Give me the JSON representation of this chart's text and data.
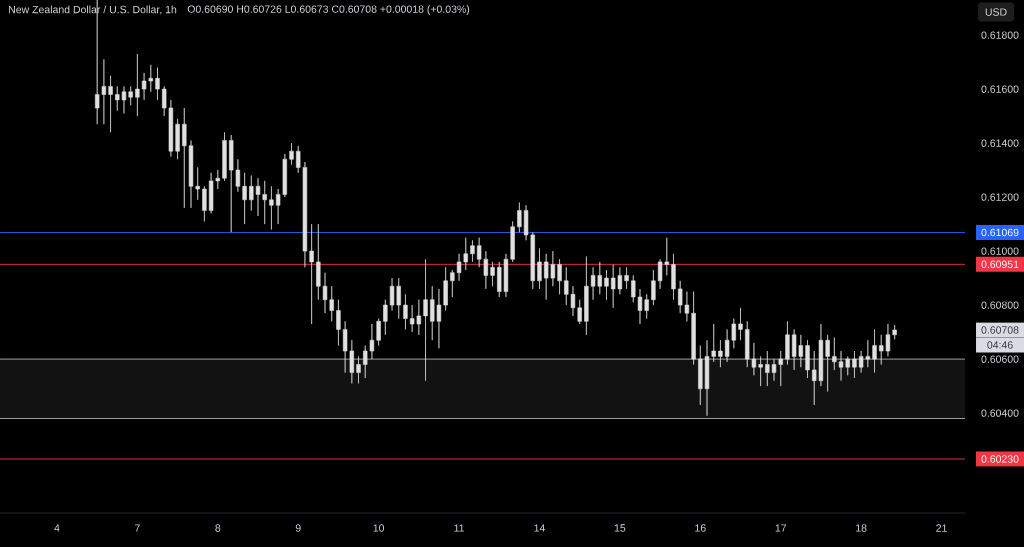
{
  "chart_data": {
    "type": "candlestick",
    "title": "New Zealand Dollar / U.S. Dollar, 1h",
    "subtitle": "O0.60690 H0.60726 L0.60673 C0.60708 +0.00018 (+0.03%)",
    "ylabel": "USD",
    "color": "#e0e0e0",
    "categories": [
      null,
      null,
      null,
      null,
      null,
      null,
      null,
      null,
      "4",
      null,
      null,
      null,
      null,
      null,
      null,
      null,
      null,
      null,
      null,
      null,
      "7",
      null,
      null,
      null,
      null,
      null,
      null,
      null,
      null,
      null,
      null,
      null,
      "8",
      null,
      null,
      null,
      null,
      null,
      null,
      null,
      null,
      null,
      null,
      null,
      "9",
      null,
      null,
      null,
      null,
      null,
      null,
      null,
      null,
      null,
      null,
      null,
      "10",
      null,
      null,
      null,
      null,
      null,
      null,
      null,
      null,
      null,
      null,
      null,
      "11",
      null,
      null,
      null,
      null,
      null,
      null,
      null,
      null,
      null,
      null,
      null,
      "14",
      null,
      null,
      null,
      null,
      null,
      null,
      null,
      null,
      null,
      null,
      null,
      "15",
      null,
      null,
      null,
      null,
      null,
      null,
      null,
      null,
      null,
      null,
      null,
      "16",
      null,
      null,
      null,
      null,
      null,
      null,
      null,
      null,
      null,
      null,
      null,
      "17",
      null,
      null,
      null,
      null,
      null,
      null,
      null,
      null,
      null,
      null,
      null,
      "18",
      null,
      null,
      null,
      null,
      null,
      null,
      null,
      null,
      null,
      null,
      null,
      "21",
      null,
      null,
      null
    ],
    "ohlc": [
      null,
      null,
      null,
      null,
      null,
      null,
      null,
      null,
      null,
      null,
      null,
      null,
      null,
      null,
      [
        0.6153,
        0.6193,
        0.6147,
        0.6158
      ],
      [
        0.6158,
        0.6171,
        0.6147,
        0.6161
      ],
      [
        0.6161,
        0.6165,
        0.6144,
        0.6158
      ],
      [
        0.6158,
        0.6161,
        0.6152,
        0.6156
      ],
      [
        0.6156,
        0.6161,
        0.6151,
        0.6159
      ],
      [
        0.6159,
        0.6161,
        0.6154,
        0.6157
      ],
      [
        0.6157,
        0.6173,
        0.615,
        0.616
      ],
      [
        0.616,
        0.6166,
        0.6156,
        0.6163
      ],
      [
        0.6163,
        0.6169,
        0.6159,
        0.6164
      ],
      [
        0.6164,
        0.6168,
        0.6156,
        0.616
      ],
      [
        0.616,
        0.6161,
        0.615,
        0.6153
      ],
      [
        0.6153,
        0.6156,
        0.6135,
        0.6137
      ],
      [
        0.6137,
        0.6149,
        0.6134,
        0.6147
      ],
      [
        0.6147,
        0.6153,
        0.6116,
        0.6139
      ],
      [
        0.6139,
        0.6141,
        0.6116,
        0.6124
      ],
      [
        0.6124,
        0.6131,
        0.6119,
        0.6123
      ],
      [
        0.6123,
        0.6124,
        0.6111,
        0.6115
      ],
      [
        0.6115,
        0.6129,
        0.6114,
        0.6126
      ],
      [
        0.6126,
        0.613,
        0.6123,
        0.6127
      ],
      [
        0.6127,
        0.6144,
        0.6126,
        0.6141
      ],
      [
        0.6141,
        0.6143,
        0.6107,
        0.613
      ],
      [
        0.613,
        0.6134,
        0.6122,
        0.6124
      ],
      [
        0.6124,
        0.6129,
        0.611,
        0.6119
      ],
      [
        0.6119,
        0.6128,
        0.6115,
        0.6124
      ],
      [
        0.6124,
        0.6127,
        0.6113,
        0.6121
      ],
      [
        0.6121,
        0.6126,
        0.611,
        0.6119
      ],
      [
        0.6119,
        0.6124,
        0.6108,
        0.6117
      ],
      [
        0.6117,
        0.6123,
        0.611,
        0.6121
      ],
      [
        0.6121,
        0.6136,
        0.612,
        0.6134
      ],
      [
        0.6134,
        0.614,
        0.6132,
        0.6137
      ],
      [
        0.6137,
        0.6139,
        0.6129,
        0.6131
      ],
      [
        0.6131,
        0.6133,
        0.6094,
        0.61
      ],
      [
        0.61,
        0.611,
        0.6073,
        0.6096
      ],
      [
        0.6096,
        0.611,
        0.6082,
        0.6087
      ],
      [
        0.6087,
        0.6092,
        0.6077,
        0.6082
      ],
      [
        0.6082,
        0.6087,
        0.6074,
        0.6078
      ],
      [
        0.6078,
        0.6082,
        0.6065,
        0.6071
      ],
      [
        0.6071,
        0.6074,
        0.6055,
        0.6063
      ],
      [
        0.6063,
        0.6067,
        0.6051,
        0.6055
      ],
      [
        0.6055,
        0.6061,
        0.6051,
        0.6058
      ],
      [
        0.6058,
        0.6065,
        0.6053,
        0.6063
      ],
      [
        0.6063,
        0.6073,
        0.606,
        0.6067
      ],
      [
        0.6067,
        0.6075,
        0.6065,
        0.6074
      ],
      [
        0.6074,
        0.6082,
        0.6069,
        0.608
      ],
      [
        0.608,
        0.609,
        0.6078,
        0.6087
      ],
      [
        0.6087,
        0.609,
        0.6075,
        0.608
      ],
      [
        0.608,
        0.6084,
        0.6071,
        0.6075
      ],
      [
        0.6075,
        0.608,
        0.607,
        0.6073
      ],
      [
        0.6073,
        0.6082,
        0.6069,
        0.6076
      ],
      [
        0.6076,
        0.6097,
        0.6052,
        0.6082
      ],
      [
        0.6082,
        0.6087,
        0.6067,
        0.6074
      ],
      [
        0.6074,
        0.6086,
        0.6064,
        0.608
      ],
      [
        0.608,
        0.6094,
        0.6078,
        0.6089
      ],
      [
        0.6089,
        0.6093,
        0.6083,
        0.6092
      ],
      [
        0.6092,
        0.6099,
        0.6089,
        0.6096
      ],
      [
        0.6096,
        0.6105,
        0.6093,
        0.6099
      ],
      [
        0.6099,
        0.6104,
        0.6096,
        0.6102
      ],
      [
        0.6102,
        0.6105,
        0.6094,
        0.6097
      ],
      [
        0.6097,
        0.61,
        0.6086,
        0.6091
      ],
      [
        0.6091,
        0.6096,
        0.6087,
        0.6094
      ],
      [
        0.6094,
        0.6096,
        0.6083,
        0.6085
      ],
      [
        0.6085,
        0.6099,
        0.6083,
        0.6097
      ],
      [
        0.6097,
        0.6111,
        0.6096,
        0.6109
      ],
      [
        0.6109,
        0.6118,
        0.6107,
        0.6115
      ],
      [
        0.6115,
        0.6117,
        0.6104,
        0.6106
      ],
      [
        0.6106,
        0.6107,
        0.6086,
        0.6089
      ],
      [
        0.6089,
        0.6101,
        0.6086,
        0.6096
      ],
      [
        0.6096,
        0.6099,
        0.6082,
        0.609
      ],
      [
        0.609,
        0.61,
        0.6087,
        0.6095
      ],
      [
        0.6095,
        0.6097,
        0.6084,
        0.6089
      ],
      [
        0.6089,
        0.6094,
        0.608,
        0.6084
      ],
      [
        0.6084,
        0.6087,
        0.6076,
        0.6079
      ],
      [
        0.6079,
        0.6082,
        0.6073,
        0.6074
      ],
      [
        0.6074,
        0.6098,
        0.6069,
        0.6087
      ],
      [
        0.6087,
        0.6094,
        0.6082,
        0.6091
      ],
      [
        0.6091,
        0.6096,
        0.6084,
        0.6087
      ],
      [
        0.6087,
        0.6093,
        0.6082,
        0.609
      ],
      [
        0.609,
        0.6095,
        0.6079,
        0.6086
      ],
      [
        0.6086,
        0.6094,
        0.6084,
        0.6091
      ],
      [
        0.6091,
        0.6094,
        0.6086,
        0.6089
      ],
      [
        0.6089,
        0.6091,
        0.6081,
        0.6083
      ],
      [
        0.6083,
        0.6086,
        0.6073,
        0.6078
      ],
      [
        0.6078,
        0.6084,
        0.6075,
        0.6082
      ],
      [
        0.6082,
        0.6093,
        0.608,
        0.6089
      ],
      [
        0.6089,
        0.6097,
        0.6086,
        0.6096
      ],
      [
        0.6096,
        0.6105,
        0.6091,
        0.6095
      ],
      [
        0.6095,
        0.6099,
        0.6082,
        0.6086
      ],
      [
        0.6086,
        0.6089,
        0.6077,
        0.608
      ],
      [
        0.608,
        0.6085,
        0.6074,
        0.6077
      ],
      [
        0.6077,
        0.6085,
        0.6058,
        0.606
      ],
      [
        0.606,
        0.6065,
        0.6043,
        0.6049
      ],
      [
        0.6049,
        0.6067,
        0.6039,
        0.6061
      ],
      [
        0.6061,
        0.6073,
        0.6059,
        0.6063
      ],
      [
        0.6063,
        0.6067,
        0.6057,
        0.6061
      ],
      [
        0.6061,
        0.6071,
        0.6059,
        0.6067
      ],
      [
        0.6067,
        0.6075,
        0.6064,
        0.6073
      ],
      [
        0.6073,
        0.6079,
        0.6067,
        0.6071
      ],
      [
        0.6071,
        0.6074,
        0.6057,
        0.606
      ],
      [
        0.606,
        0.6066,
        0.6054,
        0.6057
      ],
      [
        0.6057,
        0.6061,
        0.605,
        0.6058
      ],
      [
        0.6058,
        0.6063,
        0.605,
        0.6055
      ],
      [
        0.6055,
        0.606,
        0.6052,
        0.6058
      ],
      [
        0.6058,
        0.6063,
        0.605,
        0.606
      ],
      [
        0.606,
        0.6074,
        0.6058,
        0.6069
      ],
      [
        0.6069,
        0.6071,
        0.6056,
        0.6061
      ],
      [
        0.6061,
        0.6069,
        0.6057,
        0.6065
      ],
      [
        0.6065,
        0.6067,
        0.6053,
        0.6056
      ],
      [
        0.6056,
        0.6063,
        0.6043,
        0.6052
      ],
      [
        0.6052,
        0.6073,
        0.605,
        0.6067
      ],
      [
        0.6067,
        0.6069,
        0.6048,
        0.6061
      ],
      [
        0.6061,
        0.6068,
        0.6056,
        0.6059
      ],
      [
        0.6059,
        0.6063,
        0.6052,
        0.6057
      ],
      [
        0.6057,
        0.6061,
        0.6054,
        0.606
      ],
      [
        0.606,
        0.6063,
        0.6053,
        0.6057
      ],
      [
        0.6057,
        0.6063,
        0.6055,
        0.6061
      ],
      [
        0.6061,
        0.6067,
        0.6057,
        0.606
      ],
      [
        0.606,
        0.6071,
        0.6055,
        0.6065
      ],
      [
        0.6065,
        0.6069,
        0.6058,
        0.6063
      ],
      [
        0.6063,
        0.6073,
        0.6061,
        0.6069
      ],
      [
        0.6069,
        0.60726,
        0.60673,
        0.60708
      ],
      null,
      null,
      null,
      null,
      null,
      null,
      null,
      null,
      null,
      null
    ],
    "ylim": [
      0.6003,
      0.6193
    ],
    "yticks": [
      {
        "value": 0.604,
        "label": "0.60400"
      },
      {
        "value": 0.606,
        "label": "0.60600"
      },
      {
        "value": 0.608,
        "label": "0.60800"
      },
      {
        "value": 0.61,
        "label": "0.61000"
      },
      {
        "value": 0.612,
        "label": "0.61200"
      },
      {
        "value": 0.614,
        "label": "0.61400"
      },
      {
        "value": 0.616,
        "label": "0.61600"
      },
      {
        "value": 0.618,
        "label": "0.61800"
      }
    ],
    "bands": [
      {
        "axis": "y",
        "from": 0.6038,
        "to": 0.606,
        "color": "#121212"
      }
    ],
    "ref_lines": [
      {
        "axis": "y",
        "value": 0.606,
        "color": "#b0b0b0"
      },
      {
        "axis": "y",
        "value": 0.6038,
        "color": "#b0b0b0"
      },
      {
        "axis": "y",
        "value": 0.61069,
        "label": "0.61069",
        "color": "#2962ff"
      },
      {
        "axis": "y",
        "value": 0.60951,
        "label": "0.60951",
        "color": "#f23645"
      },
      {
        "axis": "y",
        "value": 0.6023,
        "label": "0.60230",
        "color": "#f23645"
      }
    ],
    "annotations": [
      "0.60708",
      "04:46"
    ]
  }
}
